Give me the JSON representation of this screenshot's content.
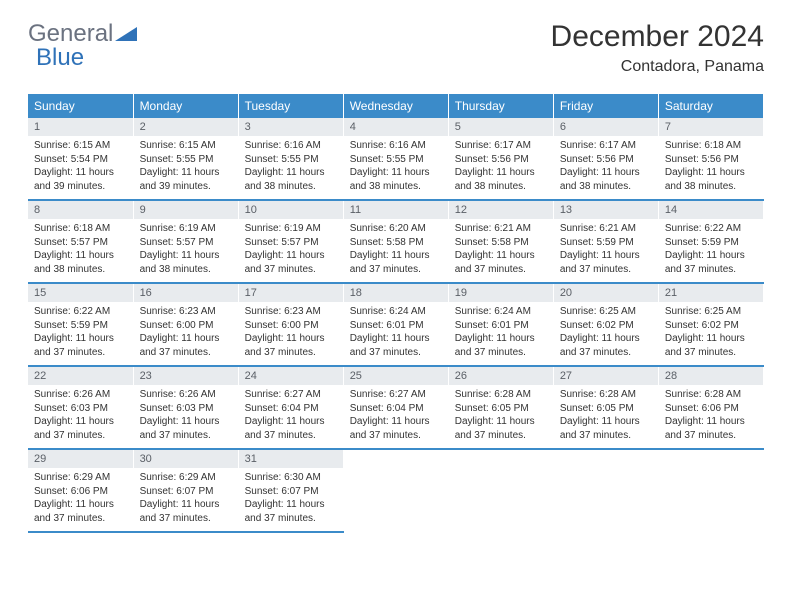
{
  "logo": {
    "general": "General",
    "blue": "Blue"
  },
  "title": "December 2024",
  "location": "Contadora, Panama",
  "colors": {
    "header_bg": "#3b8bc9",
    "header_text": "#ffffff",
    "daynum_bg": "#e8ebee",
    "daynum_text": "#5a5f66",
    "body_text": "#333333",
    "row_border": "#3b8bc9",
    "logo_gray": "#6b7280",
    "logo_blue": "#2f72b8",
    "background": "#ffffff"
  },
  "day_labels": [
    "Sunday",
    "Monday",
    "Tuesday",
    "Wednesday",
    "Thursday",
    "Friday",
    "Saturday"
  ],
  "cell_font_size": 10,
  "header_font_size": 12,
  "days": [
    {
      "n": 1,
      "sr": "6:15 AM",
      "ss": "5:54 PM",
      "dl": "11 hours and 39 minutes."
    },
    {
      "n": 2,
      "sr": "6:15 AM",
      "ss": "5:55 PM",
      "dl": "11 hours and 39 minutes."
    },
    {
      "n": 3,
      "sr": "6:16 AM",
      "ss": "5:55 PM",
      "dl": "11 hours and 38 minutes."
    },
    {
      "n": 4,
      "sr": "6:16 AM",
      "ss": "5:55 PM",
      "dl": "11 hours and 38 minutes."
    },
    {
      "n": 5,
      "sr": "6:17 AM",
      "ss": "5:56 PM",
      "dl": "11 hours and 38 minutes."
    },
    {
      "n": 6,
      "sr": "6:17 AM",
      "ss": "5:56 PM",
      "dl": "11 hours and 38 minutes."
    },
    {
      "n": 7,
      "sr": "6:18 AM",
      "ss": "5:56 PM",
      "dl": "11 hours and 38 minutes."
    },
    {
      "n": 8,
      "sr": "6:18 AM",
      "ss": "5:57 PM",
      "dl": "11 hours and 38 minutes."
    },
    {
      "n": 9,
      "sr": "6:19 AM",
      "ss": "5:57 PM",
      "dl": "11 hours and 38 minutes."
    },
    {
      "n": 10,
      "sr": "6:19 AM",
      "ss": "5:57 PM",
      "dl": "11 hours and 37 minutes."
    },
    {
      "n": 11,
      "sr": "6:20 AM",
      "ss": "5:58 PM",
      "dl": "11 hours and 37 minutes."
    },
    {
      "n": 12,
      "sr": "6:21 AM",
      "ss": "5:58 PM",
      "dl": "11 hours and 37 minutes."
    },
    {
      "n": 13,
      "sr": "6:21 AM",
      "ss": "5:59 PM",
      "dl": "11 hours and 37 minutes."
    },
    {
      "n": 14,
      "sr": "6:22 AM",
      "ss": "5:59 PM",
      "dl": "11 hours and 37 minutes."
    },
    {
      "n": 15,
      "sr": "6:22 AM",
      "ss": "5:59 PM",
      "dl": "11 hours and 37 minutes."
    },
    {
      "n": 16,
      "sr": "6:23 AM",
      "ss": "6:00 PM",
      "dl": "11 hours and 37 minutes."
    },
    {
      "n": 17,
      "sr": "6:23 AM",
      "ss": "6:00 PM",
      "dl": "11 hours and 37 minutes."
    },
    {
      "n": 18,
      "sr": "6:24 AM",
      "ss": "6:01 PM",
      "dl": "11 hours and 37 minutes."
    },
    {
      "n": 19,
      "sr": "6:24 AM",
      "ss": "6:01 PM",
      "dl": "11 hours and 37 minutes."
    },
    {
      "n": 20,
      "sr": "6:25 AM",
      "ss": "6:02 PM",
      "dl": "11 hours and 37 minutes."
    },
    {
      "n": 21,
      "sr": "6:25 AM",
      "ss": "6:02 PM",
      "dl": "11 hours and 37 minutes."
    },
    {
      "n": 22,
      "sr": "6:26 AM",
      "ss": "6:03 PM",
      "dl": "11 hours and 37 minutes."
    },
    {
      "n": 23,
      "sr": "6:26 AM",
      "ss": "6:03 PM",
      "dl": "11 hours and 37 minutes."
    },
    {
      "n": 24,
      "sr": "6:27 AM",
      "ss": "6:04 PM",
      "dl": "11 hours and 37 minutes."
    },
    {
      "n": 25,
      "sr": "6:27 AM",
      "ss": "6:04 PM",
      "dl": "11 hours and 37 minutes."
    },
    {
      "n": 26,
      "sr": "6:28 AM",
      "ss": "6:05 PM",
      "dl": "11 hours and 37 minutes."
    },
    {
      "n": 27,
      "sr": "6:28 AM",
      "ss": "6:05 PM",
      "dl": "11 hours and 37 minutes."
    },
    {
      "n": 28,
      "sr": "6:28 AM",
      "ss": "6:06 PM",
      "dl": "11 hours and 37 minutes."
    },
    {
      "n": 29,
      "sr": "6:29 AM",
      "ss": "6:06 PM",
      "dl": "11 hours and 37 minutes."
    },
    {
      "n": 30,
      "sr": "6:29 AM",
      "ss": "6:07 PM",
      "dl": "11 hours and 37 minutes."
    },
    {
      "n": 31,
      "sr": "6:30 AM",
      "ss": "6:07 PM",
      "dl": "11 hours and 37 minutes."
    }
  ],
  "labels": {
    "sunrise": "Sunrise:",
    "sunset": "Sunset:",
    "daylight": "Daylight:"
  }
}
